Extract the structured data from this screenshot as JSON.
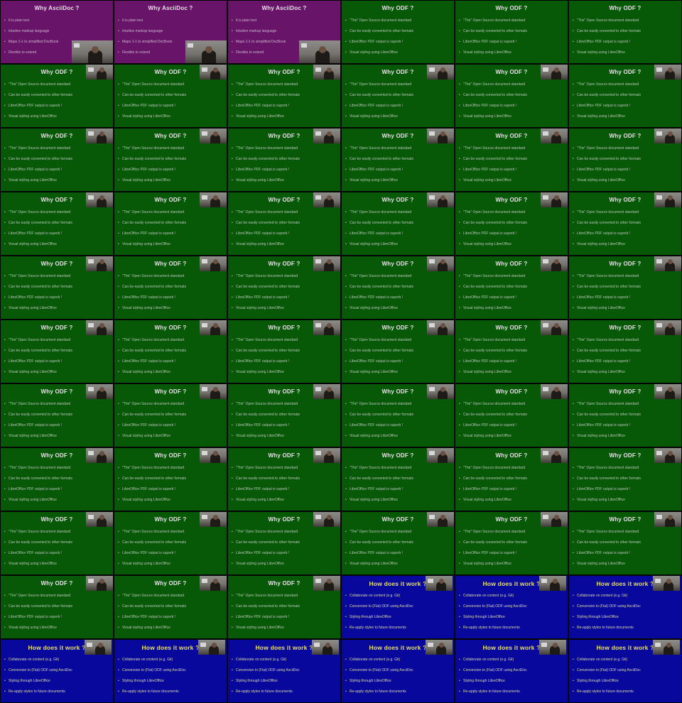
{
  "slides": {
    "asciidoc": {
      "title": "Why AsciiDoc ?",
      "bullets": [
        "It is plain text",
        "Intuitive markup language",
        "Maps 1-1 to simplified DocBook",
        "Flexible to extend"
      ]
    },
    "odf": {
      "title": "Why ODF ?",
      "bullets": [
        "\"The\" Open Source document standard",
        "Can be easily converted to other formats",
        "LibreOffice PDF output is superb !",
        "Visual styling using LibreOffice"
      ]
    },
    "how": {
      "title": "How does it work ?",
      "bullets": [
        "Collaborate on content (e.g. Git)",
        "Conversion to (Flat) ODF using AsciiDoc",
        "Styling through LibreOffice",
        "Re-apply styles to future documents"
      ]
    }
  },
  "frames": [
    "asciidoc",
    "asciidoc",
    "asciidoc",
    "odf",
    "odf",
    "odf",
    "odf",
    "odf",
    "odf",
    "odf",
    "odf",
    "odf",
    "odf",
    "odf",
    "odf",
    "odf",
    "odf",
    "odf",
    "odf",
    "odf",
    "odf",
    "odf",
    "odf",
    "odf",
    "odf",
    "odf",
    "odf",
    "odf",
    "odf",
    "odf",
    "odf",
    "odf",
    "odf",
    "odf",
    "odf",
    "odf",
    "odf",
    "odf",
    "odf",
    "odf",
    "odf",
    "odf",
    "odf",
    "odf",
    "odf",
    "odf",
    "odf",
    "odf",
    "odf",
    "odf",
    "odf",
    "odf",
    "odf",
    "odf",
    "odf",
    "odf",
    "odf",
    "how",
    "how",
    "how",
    "how",
    "how",
    "how",
    "how",
    "how",
    "how"
  ],
  "camera": [
    false,
    false,
    false,
    false,
    false,
    false,
    true,
    true,
    true,
    true,
    true,
    true,
    true,
    true,
    true,
    true,
    true,
    true,
    true,
    true,
    true,
    true,
    true,
    true,
    true,
    true,
    true,
    true,
    true,
    true,
    true,
    true,
    true,
    true,
    true,
    true,
    true,
    true,
    true,
    true,
    true,
    true,
    true,
    true,
    true,
    true,
    true,
    true,
    true,
    true,
    true,
    true,
    true,
    true,
    true,
    true,
    true,
    true,
    true,
    true,
    true,
    true,
    true,
    true,
    true,
    true
  ],
  "colors": {
    "asciidoc": "#681468",
    "odf": "#075807",
    "how": "#08089c"
  }
}
